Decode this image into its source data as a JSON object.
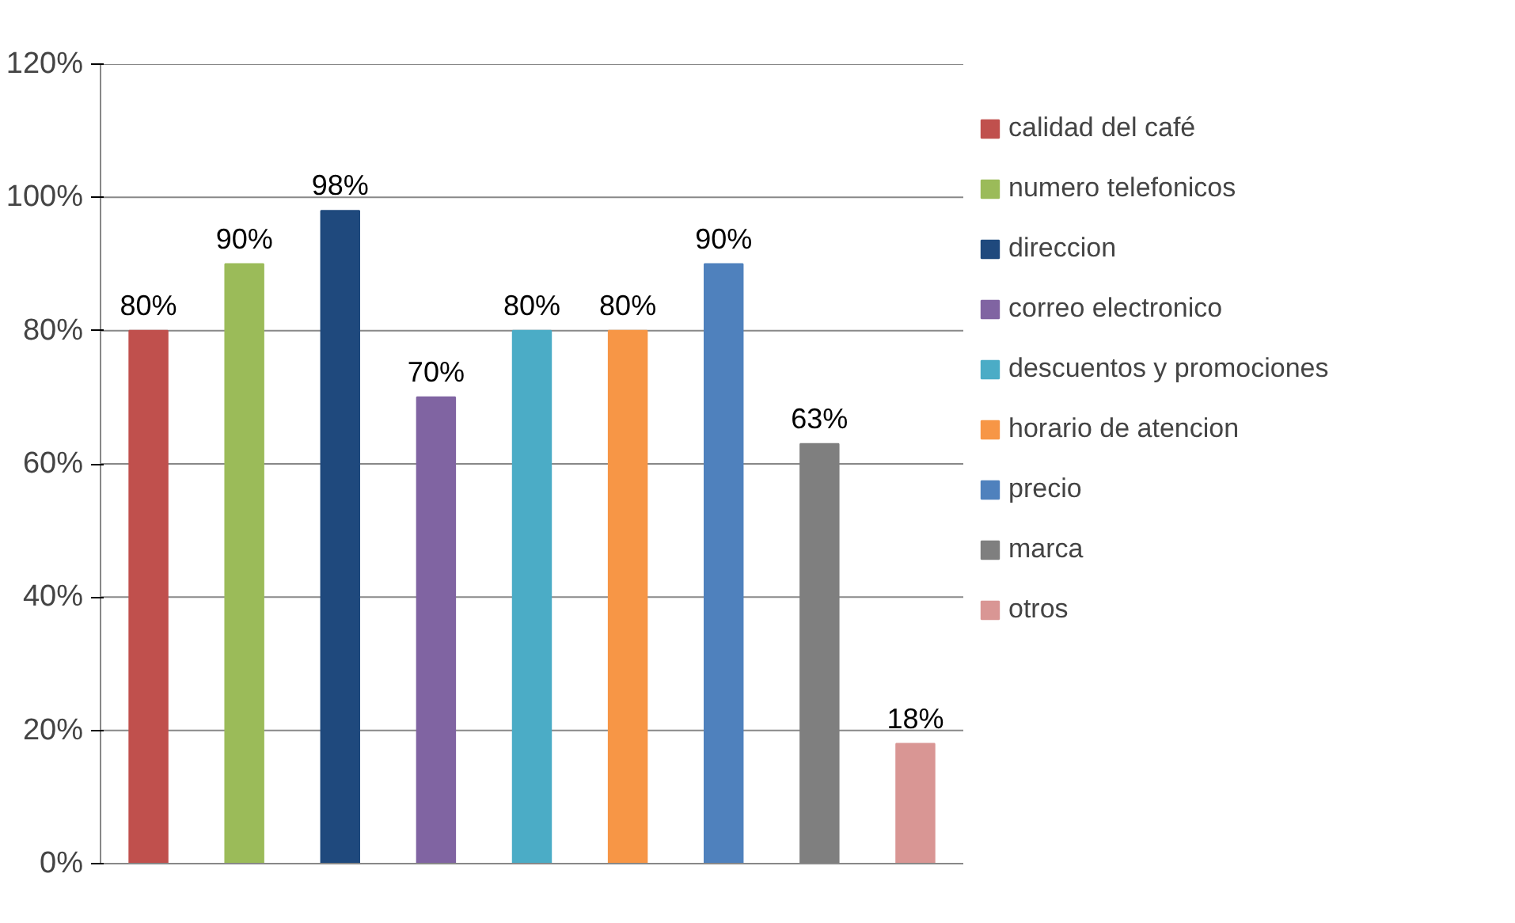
{
  "chart_data": {
    "type": "bar",
    "categories": [
      null,
      null,
      null,
      null,
      null,
      null,
      null,
      null,
      null
    ],
    "series": [
      {
        "name": "calidad del café",
        "color": "#c0504d",
        "values": [
          80,
          null,
          null,
          null,
          null,
          null,
          null,
          null,
          null
        ],
        "value_labels": [
          "80%",
          null,
          null,
          null,
          null,
          null,
          null,
          null,
          null
        ]
      },
      {
        "name": "numero telefonicos",
        "color": "#9bbb59",
        "values": [
          null,
          90,
          null,
          null,
          null,
          null,
          null,
          null,
          null
        ],
        "value_labels": [
          null,
          "90%",
          null,
          null,
          null,
          null,
          null,
          null,
          null
        ]
      },
      {
        "name": "direccion",
        "color": "#1f497d",
        "values": [
          null,
          null,
          98,
          null,
          null,
          null,
          null,
          null,
          null
        ],
        "value_labels": [
          null,
          null,
          "98%",
          null,
          null,
          null,
          null,
          null,
          null
        ]
      },
      {
        "name": "correo electronico",
        "color": "#8064a2",
        "values": [
          null,
          null,
          null,
          70,
          null,
          null,
          null,
          null,
          null
        ],
        "value_labels": [
          null,
          null,
          null,
          "70%",
          null,
          null,
          null,
          null,
          null
        ]
      },
      {
        "name": "descuentos y promociones",
        "color": "#4bacc6",
        "values": [
          null,
          null,
          null,
          null,
          80,
          null,
          null,
          null,
          null
        ],
        "value_labels": [
          null,
          null,
          null,
          null,
          "80%",
          null,
          null,
          null,
          null
        ]
      },
      {
        "name": "horario de atencion",
        "color": "#f79646",
        "values": [
          null,
          null,
          null,
          null,
          null,
          80,
          null,
          null,
          null
        ],
        "value_labels": [
          null,
          null,
          null,
          null,
          null,
          "80%",
          null,
          null,
          null
        ]
      },
      {
        "name": "precio",
        "color": "#4f81bd",
        "values": [
          null,
          null,
          null,
          null,
          null,
          null,
          90,
          null,
          null
        ],
        "value_labels": [
          null,
          null,
          null,
          null,
          null,
          null,
          "90%",
          null,
          null
        ]
      },
      {
        "name": "marca",
        "color": "#7f7f7f",
        "values": [
          null,
          null,
          null,
          null,
          null,
          null,
          null,
          63,
          null
        ],
        "value_labels": [
          null,
          null,
          null,
          null,
          null,
          null,
          null,
          "63%",
          null
        ]
      },
      {
        "name": "otros",
        "color": "#d99694",
        "values": [
          null,
          null,
          null,
          null,
          null,
          null,
          null,
          null,
          18
        ],
        "value_labels": [
          null,
          null,
          null,
          null,
          null,
          null,
          null,
          null,
          "18%"
        ]
      }
    ],
    "ylim": [
      0,
      120
    ],
    "yticks": [
      {
        "value": 0,
        "label": "0%"
      },
      {
        "value": 20,
        "label": "20%"
      },
      {
        "value": 40,
        "label": "40%"
      },
      {
        "value": 60,
        "label": "60%"
      },
      {
        "value": 80,
        "label": "80%"
      },
      {
        "value": 100,
        "label": "100%"
      },
      {
        "value": 120,
        "label": "120%"
      }
    ],
    "grid": "y",
    "legend": "right"
  }
}
